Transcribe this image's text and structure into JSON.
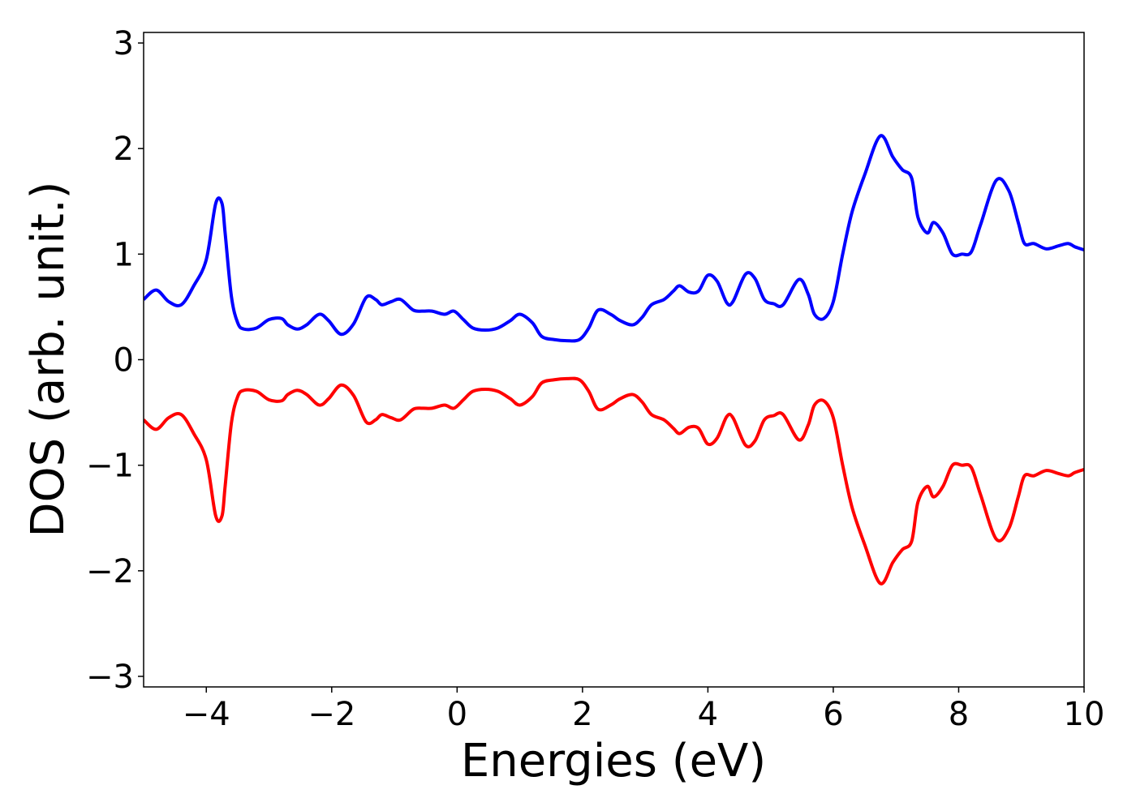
{
  "chart_data": {
    "type": "line",
    "xlabel": "Energies (eV)",
    "ylabel": "DOS (arb. unit.)",
    "xlim": [
      -5,
      10
    ],
    "ylim": [
      -3.1,
      3.1
    ],
    "xticks": [
      -4,
      -2,
      0,
      2,
      4,
      6,
      8,
      10
    ],
    "xtick_labels": [
      "−4",
      "−2",
      "0",
      "2",
      "4",
      "6",
      "8",
      "10"
    ],
    "yticks": [
      -3,
      -2,
      -1,
      0,
      1,
      2,
      3
    ],
    "ytick_labels": [
      "−3",
      "−2",
      "−1",
      "0",
      "1",
      "2",
      "3"
    ],
    "grid": false,
    "legend": "none",
    "series": [
      {
        "color": "#0000ff",
        "x": [
          -5.0,
          -4.8,
          -4.6,
          -4.4,
          -4.2,
          -4.0,
          -3.85,
          -3.75,
          -3.7,
          -3.6,
          -3.5,
          -3.4,
          -3.2,
          -3.0,
          -2.8,
          -2.7,
          -2.55,
          -2.4,
          -2.2,
          -2.05,
          -1.85,
          -1.65,
          -1.45,
          -1.3,
          -1.2,
          -1.05,
          -0.9,
          -0.7,
          -0.55,
          -0.4,
          -0.2,
          -0.05,
          0.1,
          0.25,
          0.45,
          0.65,
          0.85,
          1.0,
          1.2,
          1.35,
          1.55,
          1.75,
          1.95,
          2.1,
          2.25,
          2.45,
          2.6,
          2.8,
          2.95,
          3.1,
          3.3,
          3.45,
          3.55,
          3.7,
          3.85,
          4.0,
          4.15,
          4.3,
          4.4,
          4.6,
          4.75,
          4.9,
          5.05,
          5.2,
          5.45,
          5.6,
          5.7,
          5.85,
          6.0,
          6.15,
          6.3,
          6.5,
          6.75,
          6.95,
          7.1,
          7.25,
          7.35,
          7.5,
          7.6,
          7.75,
          7.9,
          8.05,
          8.2,
          8.35,
          8.6,
          8.8,
          8.95,
          9.05,
          9.2,
          9.4,
          9.6,
          9.75,
          9.85,
          10.0
        ],
        "y": [
          0.57,
          0.66,
          0.55,
          0.52,
          0.7,
          0.95,
          1.48,
          1.48,
          1.2,
          0.6,
          0.35,
          0.29,
          0.3,
          0.38,
          0.39,
          0.33,
          0.29,
          0.33,
          0.43,
          0.37,
          0.24,
          0.34,
          0.59,
          0.57,
          0.52,
          0.55,
          0.57,
          0.47,
          0.46,
          0.46,
          0.43,
          0.46,
          0.38,
          0.3,
          0.28,
          0.3,
          0.37,
          0.43,
          0.35,
          0.22,
          0.19,
          0.18,
          0.19,
          0.3,
          0.47,
          0.43,
          0.37,
          0.33,
          0.4,
          0.52,
          0.57,
          0.65,
          0.7,
          0.64,
          0.65,
          0.8,
          0.74,
          0.54,
          0.55,
          0.81,
          0.77,
          0.57,
          0.53,
          0.52,
          0.76,
          0.62,
          0.43,
          0.39,
          0.55,
          1.0,
          1.4,
          1.75,
          2.12,
          1.92,
          1.8,
          1.72,
          1.35,
          1.2,
          1.3,
          1.2,
          1.0,
          1.0,
          1.02,
          1.28,
          1.7,
          1.6,
          1.3,
          1.1,
          1.1,
          1.05,
          1.08,
          1.1,
          1.07,
          1.04
        ]
      },
      {
        "color": "#ff0000",
        "x": [
          -5.0,
          -4.8,
          -4.6,
          -4.4,
          -4.2,
          -4.0,
          -3.85,
          -3.75,
          -3.7,
          -3.6,
          -3.5,
          -3.4,
          -3.2,
          -3.0,
          -2.8,
          -2.7,
          -2.55,
          -2.4,
          -2.2,
          -2.05,
          -1.85,
          -1.65,
          -1.45,
          -1.3,
          -1.2,
          -1.05,
          -0.9,
          -0.7,
          -0.55,
          -0.4,
          -0.2,
          -0.05,
          0.1,
          0.25,
          0.45,
          0.65,
          0.85,
          1.0,
          1.2,
          1.35,
          1.55,
          1.75,
          1.95,
          2.1,
          2.25,
          2.45,
          2.6,
          2.8,
          2.95,
          3.1,
          3.3,
          3.45,
          3.55,
          3.7,
          3.85,
          4.0,
          4.15,
          4.3,
          4.4,
          4.6,
          4.75,
          4.9,
          5.05,
          5.2,
          5.45,
          5.6,
          5.7,
          5.85,
          6.0,
          6.15,
          6.3,
          6.5,
          6.75,
          6.95,
          7.1,
          7.25,
          7.35,
          7.5,
          7.6,
          7.75,
          7.9,
          8.05,
          8.2,
          8.35,
          8.6,
          8.8,
          8.95,
          9.05,
          9.2,
          9.4,
          9.6,
          9.75,
          9.85,
          10.0
        ],
        "y": [
          -0.57,
          -0.66,
          -0.55,
          -0.52,
          -0.7,
          -0.95,
          -1.48,
          -1.48,
          -1.2,
          -0.6,
          -0.35,
          -0.29,
          -0.3,
          -0.38,
          -0.39,
          -0.33,
          -0.29,
          -0.33,
          -0.43,
          -0.37,
          -0.24,
          -0.34,
          -0.59,
          -0.57,
          -0.52,
          -0.55,
          -0.57,
          -0.47,
          -0.46,
          -0.46,
          -0.43,
          -0.46,
          -0.38,
          -0.3,
          -0.28,
          -0.3,
          -0.37,
          -0.43,
          -0.35,
          -0.22,
          -0.19,
          -0.18,
          -0.19,
          -0.3,
          -0.47,
          -0.43,
          -0.37,
          -0.33,
          -0.4,
          -0.52,
          -0.57,
          -0.65,
          -0.7,
          -0.64,
          -0.65,
          -0.8,
          -0.74,
          -0.54,
          -0.55,
          -0.81,
          -0.77,
          -0.57,
          -0.53,
          -0.52,
          -0.76,
          -0.62,
          -0.43,
          -0.39,
          -0.55,
          -1.0,
          -1.4,
          -1.75,
          -2.12,
          -1.92,
          -1.8,
          -1.72,
          -1.35,
          -1.2,
          -1.3,
          -1.2,
          -1.0,
          -1.0,
          -1.02,
          -1.28,
          -1.7,
          -1.6,
          -1.3,
          -1.1,
          -1.1,
          -1.05,
          -1.08,
          -1.1,
          -1.07,
          -1.04
        ]
      }
    ]
  }
}
